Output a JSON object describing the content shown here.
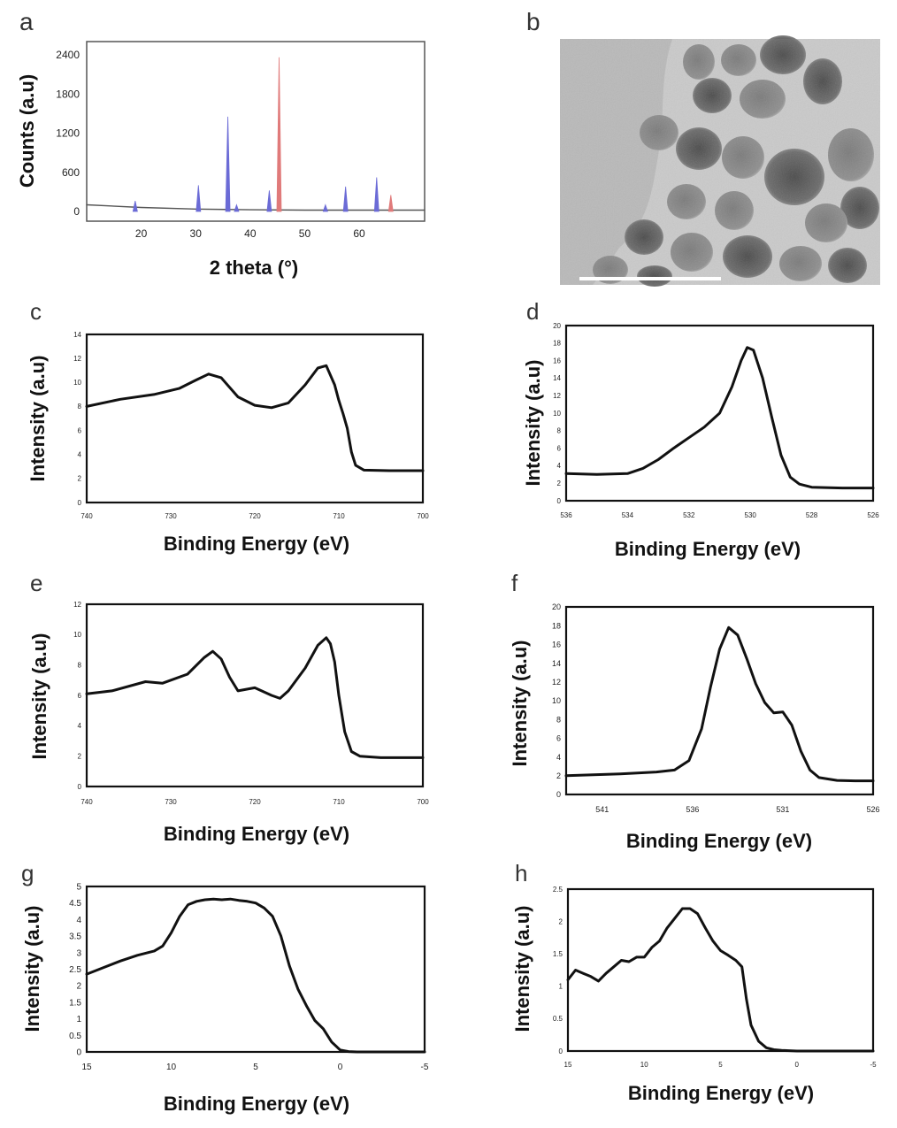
{
  "figure": {
    "panel_b": {
      "label": "b",
      "image": "tem-micrograph-nanoparticles"
    }
  },
  "chart_data": [
    {
      "id": "a",
      "label": "a",
      "type": "bar",
      "xlabel": "2 theta (°)",
      "ylabel": "Counts (a.u)",
      "xlim": [
        10,
        72
      ],
      "ylim": [
        -150,
        2600
      ],
      "xticks": [
        20,
        30,
        40,
        50,
        60
      ],
      "yticks": [
        0,
        600,
        1200,
        1800,
        2400
      ],
      "xtick_labels": [
        "20",
        "30",
        "40",
        "50",
        "60"
      ],
      "ytick_labels": [
        "0",
        "600",
        "1200",
        "1800",
        "2400"
      ],
      "grid": false,
      "background": {
        "x": [
          10,
          20,
          30,
          40,
          50,
          60,
          72
        ],
        "values": [
          100,
          60,
          35,
          25,
          20,
          20,
          20
        ]
      },
      "series": [
        {
          "color": "#6b6bd6",
          "x": [
            18.9,
            30.5,
            35.9,
            37.5,
            43.5,
            53.8,
            57.5,
            63.2
          ],
          "values": [
            160,
            400,
            1450,
            100,
            320,
            100,
            380,
            520
          ]
        },
        {
          "color": "#e07a7a",
          "x": [
            45.3,
            65.8
          ],
          "values": [
            2360,
            250
          ]
        }
      ]
    },
    {
      "id": "c",
      "label": "c",
      "type": "line",
      "xlabel": "Binding Energy (eV)",
      "ylabel": "Intensity (a.u)",
      "xlim": [
        740,
        700
      ],
      "ylim": [
        0,
        14
      ],
      "xticks": [
        740,
        730,
        720,
        710,
        700
      ],
      "yticks": [
        0,
        2,
        4,
        6,
        8,
        10,
        12,
        14
      ],
      "xtick_labels": [
        "740",
        "730",
        "720",
        "710",
        "700"
      ],
      "ytick_labels": [
        "0",
        "2",
        "4",
        "6",
        "8",
        "10",
        "12",
        "14"
      ],
      "grid": false,
      "series": [
        {
          "x": [
            740,
            736,
            732,
            729,
            727,
            725.5,
            724,
            722,
            720,
            718,
            716,
            714,
            712.5,
            711.5,
            710.5,
            710,
            709.5,
            709,
            708.5,
            708,
            707,
            704,
            700
          ],
          "values": [
            8,
            8.6,
            9,
            9.5,
            10.2,
            10.7,
            10.4,
            8.8,
            8.1,
            7.9,
            8.3,
            9.8,
            11.2,
            11.4,
            9.8,
            8.5,
            7.4,
            6.2,
            4.2,
            3.1,
            2.7,
            2.65,
            2.65
          ]
        }
      ]
    },
    {
      "id": "d",
      "label": "d",
      "type": "line",
      "xlabel": "Binding Energy (eV)",
      "ylabel": "Intensity (a.u)",
      "xlim": [
        536,
        526
      ],
      "ylim": [
        0,
        20
      ],
      "xticks": [
        536,
        534,
        532,
        530,
        528,
        526
      ],
      "yticks": [
        0,
        2,
        4,
        6,
        8,
        10,
        12,
        14,
        16,
        18,
        20
      ],
      "xtick_labels": [
        "536",
        "534",
        "532",
        "530",
        "528",
        "526"
      ],
      "ytick_labels": [
        "0",
        "2",
        "4",
        "6",
        "8",
        "10",
        "12",
        "14",
        "16",
        "18",
        "20"
      ],
      "grid": false,
      "series": [
        {
          "x": [
            536,
            535,
            534,
            533.5,
            533,
            532.5,
            532,
            531.5,
            531,
            530.6,
            530.3,
            530.1,
            529.9,
            529.6,
            529.3,
            529,
            528.7,
            528.4,
            528,
            527,
            526
          ],
          "values": [
            3.1,
            3,
            3.1,
            3.7,
            4.7,
            6,
            7.2,
            8.4,
            10,
            13,
            16,
            17.5,
            17.2,
            14,
            9.5,
            5.2,
            2.7,
            1.9,
            1.55,
            1.45,
            1.45
          ]
        }
      ]
    },
    {
      "id": "e",
      "label": "e",
      "type": "line",
      "xlabel": "Binding Energy (eV)",
      "ylabel": "Intensity (a.u)",
      "xlim": [
        740,
        700
      ],
      "ylim": [
        0,
        12
      ],
      "xticks": [
        740,
        730,
        720,
        710,
        700
      ],
      "yticks": [
        0,
        2,
        4,
        6,
        8,
        10,
        12
      ],
      "xtick_labels": [
        "740",
        "730",
        "720",
        "710",
        "700"
      ],
      "ytick_labels": [
        "0",
        "2",
        "4",
        "6",
        "8",
        "10",
        "12"
      ],
      "grid": false,
      "series": [
        {
          "x": [
            740,
            737,
            733,
            731,
            728,
            726,
            725,
            724,
            723,
            722,
            720,
            718,
            717,
            716,
            714,
            712.5,
            711.5,
            711,
            710.5,
            710,
            709.3,
            708.5,
            707.5,
            705,
            700
          ],
          "values": [
            6.1,
            6.3,
            6.9,
            6.8,
            7.4,
            8.5,
            8.9,
            8.4,
            7.2,
            6.3,
            6.5,
            6,
            5.8,
            6.3,
            7.8,
            9.3,
            9.8,
            9.4,
            8.2,
            6,
            3.6,
            2.3,
            2,
            1.9,
            1.9
          ]
        }
      ]
    },
    {
      "id": "f",
      "label": "f",
      "type": "line",
      "xlabel": "Binding Energy (eV)",
      "ylabel": "Intensity (a.u)",
      "xlim": [
        543,
        526
      ],
      "ylim": [
        0,
        20
      ],
      "xticks": [
        541,
        536,
        531,
        526
      ],
      "yticks": [
        0,
        2,
        4,
        6,
        8,
        10,
        12,
        14,
        16,
        18,
        20
      ],
      "xtick_labels": [
        "541",
        "536",
        "531",
        "526"
      ],
      "ytick_labels": [
        "0",
        "2",
        "4",
        "6",
        "8",
        "10",
        "12",
        "14",
        "16",
        "18",
        "20"
      ],
      "grid": false,
      "series": [
        {
          "x": [
            543,
            540,
            538,
            537,
            536.2,
            535.5,
            535,
            534.5,
            534,
            533.5,
            533,
            532.5,
            532,
            531.5,
            531,
            530.5,
            530,
            529.5,
            529,
            528,
            527,
            526
          ],
          "values": [
            2,
            2.2,
            2.4,
            2.6,
            3.6,
            7,
            11.5,
            15.5,
            17.8,
            17,
            14.5,
            11.8,
            9.8,
            8.7,
            8.8,
            7.4,
            4.6,
            2.6,
            1.8,
            1.5,
            1.45,
            1.45
          ]
        }
      ]
    },
    {
      "id": "g",
      "label": "g",
      "type": "line",
      "xlabel": "Binding Energy (eV)",
      "ylabel": "Intensity (a.u)",
      "xlim": [
        15,
        -5
      ],
      "ylim": [
        0,
        5
      ],
      "xticks": [
        15,
        10,
        5,
        0,
        -5
      ],
      "yticks": [
        0,
        0.5,
        1,
        1.5,
        2,
        2.5,
        3,
        3.5,
        4,
        4.5,
        5
      ],
      "xtick_labels": [
        "15",
        "10",
        "5",
        "0",
        "-5"
      ],
      "ytick_labels": [
        "0",
        "0.5",
        "1",
        "1.5",
        "2",
        "2.5",
        "3",
        "3.5",
        "4",
        "4.5",
        "5"
      ],
      "grid": false,
      "series": [
        {
          "x": [
            15,
            14,
            13,
            12,
            11,
            10.5,
            10,
            9.5,
            9,
            8.5,
            8,
            7.5,
            7,
            6.5,
            6,
            5.5,
            5,
            4.5,
            4,
            3.5,
            3,
            2.5,
            2,
            1.5,
            1,
            0.5,
            0,
            -0.5,
            -1,
            -5
          ],
          "values": [
            2.35,
            2.55,
            2.75,
            2.92,
            3.05,
            3.2,
            3.6,
            4.1,
            4.45,
            4.55,
            4.6,
            4.62,
            4.6,
            4.62,
            4.58,
            4.55,
            4.5,
            4.35,
            4.1,
            3.5,
            2.6,
            1.9,
            1.4,
            0.95,
            0.7,
            0.3,
            0.06,
            0.01,
            0,
            0
          ]
        }
      ]
    },
    {
      "id": "h",
      "label": "h",
      "type": "line",
      "xlabel": "Binding Energy (eV)",
      "ylabel": "Intensity (a.u)",
      "xlim": [
        15,
        -5
      ],
      "ylim": [
        0,
        2.5
      ],
      "xticks": [
        15,
        10,
        5,
        0,
        -5
      ],
      "yticks": [
        0,
        0.5,
        1,
        1.5,
        2,
        2.5
      ],
      "xtick_labels": [
        "15",
        "10",
        "5",
        "0",
        "-5"
      ],
      "ytick_labels": [
        "0",
        "0.5",
        "1",
        "1.5",
        "2",
        "2.5"
      ],
      "grid": false,
      "series": [
        {
          "x": [
            15,
            14.5,
            14,
            13.5,
            13,
            12.5,
            12,
            11.5,
            11,
            10.5,
            10,
            9.5,
            9,
            8.5,
            8,
            7.5,
            7,
            6.5,
            6,
            5.5,
            5,
            4.5,
            4,
            3.6,
            3.3,
            3,
            2.5,
            2,
            1.5,
            1,
            0,
            -5
          ],
          "values": [
            1.1,
            1.25,
            1.2,
            1.15,
            1.08,
            1.2,
            1.3,
            1.4,
            1.38,
            1.45,
            1.45,
            1.6,
            1.7,
            1.9,
            2.05,
            2.2,
            2.2,
            2.12,
            1.9,
            1.7,
            1.55,
            1.48,
            1.4,
            1.3,
            0.8,
            0.4,
            0.15,
            0.05,
            0.02,
            0.01,
            0,
            0
          ]
        }
      ]
    }
  ]
}
